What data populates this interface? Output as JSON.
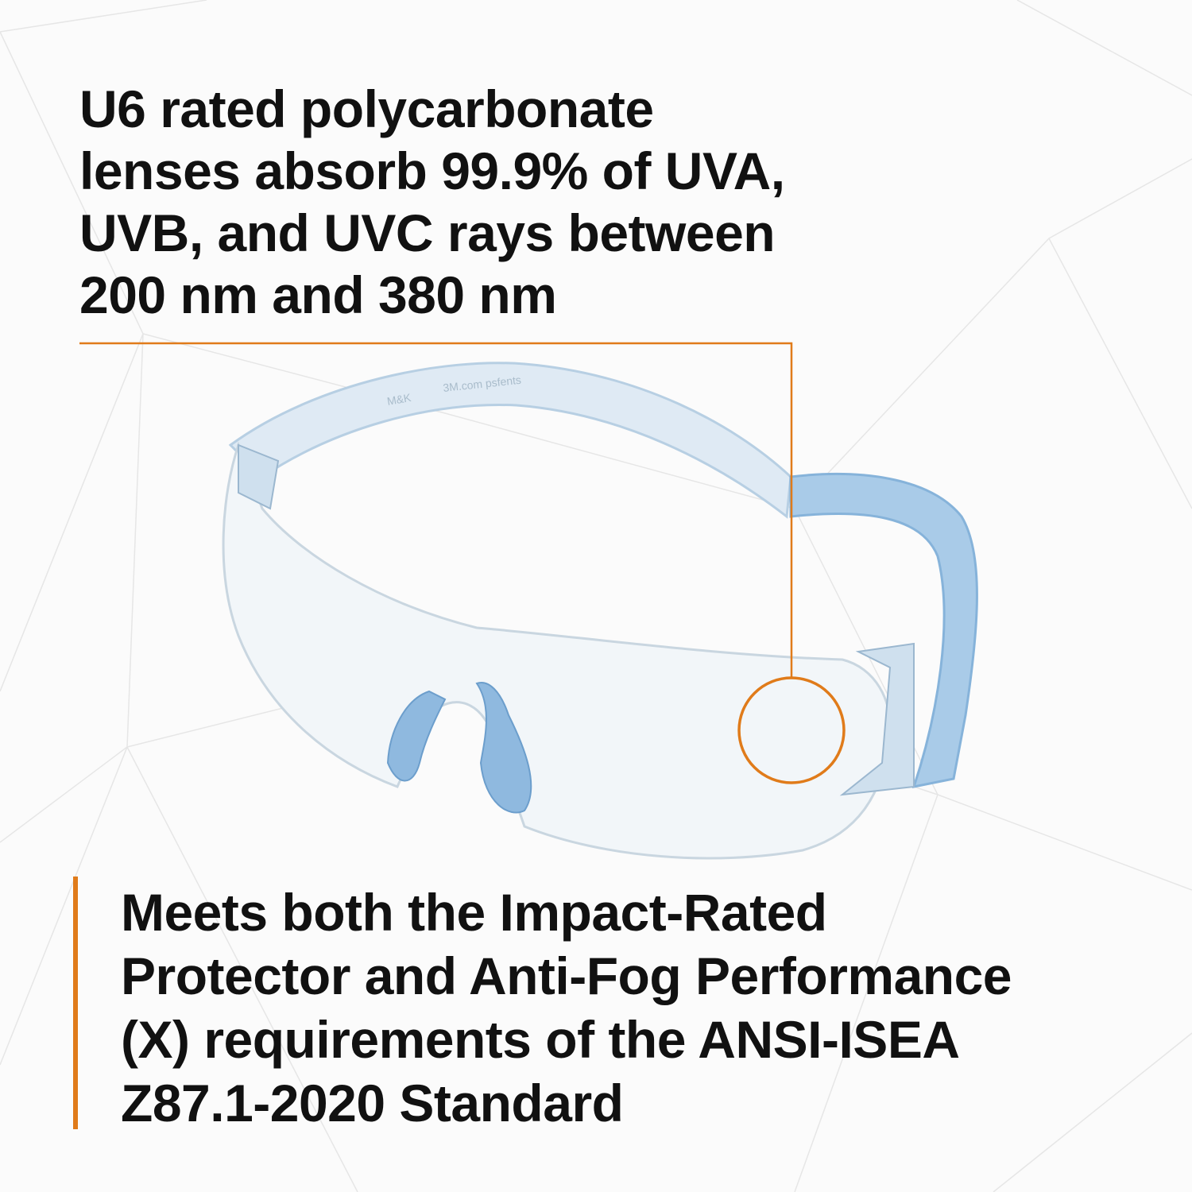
{
  "headline": {
    "lines": [
      "U6 rated polycarbonate",
      "lenses absorb 99.9% of UVA,",
      "UVB, and UVC rays between",
      "200 nm and 380 nm"
    ]
  },
  "subheadline": {
    "lines": [
      "Meets both the Impact-Rated",
      "Protector and Anti-Fog Performance",
      "(X) requirements of the ANSI-ISEA",
      "Z87.1-2020 Standard"
    ]
  },
  "product_image": {
    "temple_imprint": "3M.com psfents",
    "temple_logo": "M&K"
  },
  "colors": {
    "accent": "#e07b1a",
    "frame_blue": "#9cc3e4",
    "text": "#111111",
    "background": "#fbfbfb"
  }
}
